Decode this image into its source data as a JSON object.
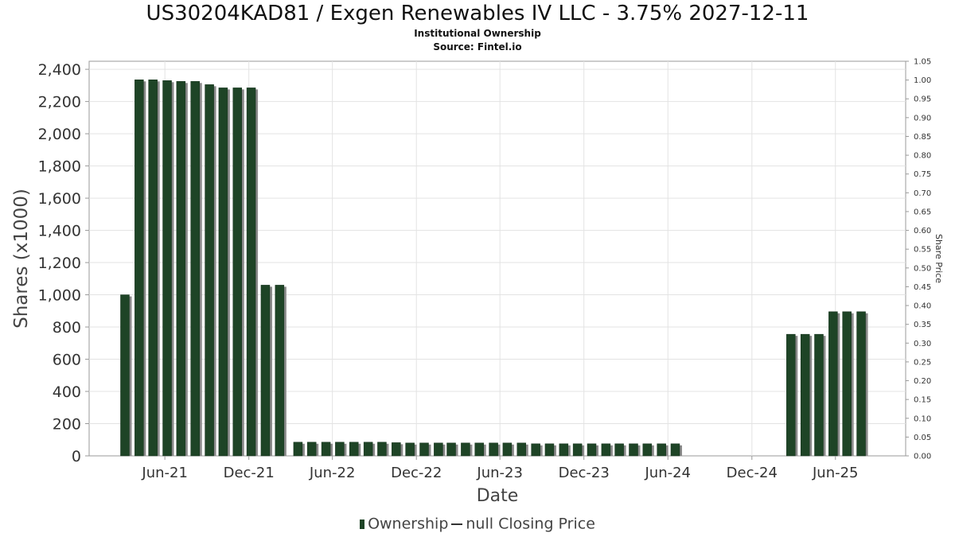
{
  "chart_data": {
    "type": "bar",
    "title": "US30204KAD81 / Exgen Renewables IV LLC - 3.75% 2027-12-11",
    "subtitle": "Institutional Ownership",
    "source": "Source: Fintel.io",
    "xlabel": "Date",
    "ylabel": "Shares (x1000)",
    "y2label": "Share Price",
    "ylim": [
      0,
      2450
    ],
    "y2lim": [
      0,
      1.05
    ],
    "grid": true,
    "legend_position": "bottom",
    "x_range": [
      "2021-01-01",
      "2025-11-15"
    ],
    "x_ticks": [
      {
        "date": "2021-06-15",
        "label": "Jun-21"
      },
      {
        "date": "2021-12-15",
        "label": "Dec-21"
      },
      {
        "date": "2022-06-15",
        "label": "Jun-22"
      },
      {
        "date": "2022-12-15",
        "label": "Dec-22"
      },
      {
        "date": "2023-06-15",
        "label": "Jun-23"
      },
      {
        "date": "2023-12-15",
        "label": "Dec-23"
      },
      {
        "date": "2024-06-15",
        "label": "Jun-24"
      },
      {
        "date": "2024-12-15",
        "label": "Dec-24"
      },
      {
        "date": "2025-06-15",
        "label": "Jun-25"
      }
    ],
    "y_ticks": [
      "0",
      "200",
      "400",
      "600",
      "800",
      "1,000",
      "1,200",
      "1,400",
      "1,600",
      "1,800",
      "2,000",
      "2,200",
      "2,400"
    ],
    "y_tick_values": [
      0,
      200,
      400,
      600,
      800,
      1000,
      1200,
      1400,
      1600,
      1800,
      2000,
      2200,
      2400
    ],
    "y2_ticks": [
      "0.00",
      "0.05",
      "0.10",
      "0.15",
      "0.20",
      "0.25",
      "0.30",
      "0.35",
      "0.40",
      "0.45",
      "0.50",
      "0.55",
      "0.60",
      "0.65",
      "0.70",
      "0.75",
      "0.80",
      "0.85",
      "0.90",
      "0.95",
      "1.00",
      "1.05"
    ],
    "series": [
      {
        "name": "Ownership",
        "color": "#1e4426",
        "shadow_color": "#8a8a8a",
        "x": [
          "2021-03-20",
          "2021-04-20",
          "2021-05-20",
          "2021-06-20",
          "2021-07-20",
          "2021-08-20",
          "2021-09-20",
          "2021-10-20",
          "2021-11-20",
          "2021-12-20",
          "2022-01-20",
          "2022-02-20",
          "2022-04-01",
          "2022-05-01",
          "2022-06-01",
          "2022-07-01",
          "2022-08-01",
          "2022-09-01",
          "2022-10-01",
          "2022-11-01",
          "2022-12-01",
          "2023-01-01",
          "2023-02-01",
          "2023-03-01",
          "2023-04-01",
          "2023-05-01",
          "2023-06-01",
          "2023-07-01",
          "2023-08-01",
          "2023-09-01",
          "2023-10-01",
          "2023-11-01",
          "2023-12-01",
          "2024-01-01",
          "2024-02-01",
          "2024-03-01",
          "2024-04-01",
          "2024-05-01",
          "2024-06-01",
          "2024-07-01",
          "2025-03-10",
          "2025-04-10",
          "2025-05-10",
          "2025-06-10",
          "2025-07-10",
          "2025-08-10"
        ],
        "values": [
          1000,
          2335,
          2335,
          2330,
          2325,
          2325,
          2305,
          2285,
          2285,
          2285,
          1060,
          1060,
          85,
          85,
          85,
          85,
          85,
          85,
          85,
          82,
          80,
          80,
          80,
          80,
          80,
          80,
          80,
          80,
          80,
          75,
          75,
          75,
          75,
          75,
          75,
          75,
          75,
          75,
          75,
          75,
          755,
          755,
          755,
          895,
          895,
          895
        ]
      },
      {
        "name": "null Closing Price",
        "color": "#333333",
        "values": []
      }
    ]
  }
}
